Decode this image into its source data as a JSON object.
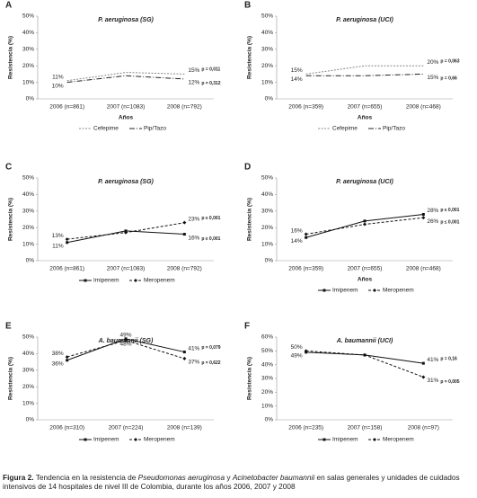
{
  "chart_data": [
    {
      "type": "line",
      "panel": "A",
      "title": "P. aeruginosa (SG)",
      "y_label": "Resistencia (%)",
      "x_label": "Años",
      "categories": [
        "2006 (n=861)",
        "2007 (n=1083)",
        "2008 (n=792)"
      ],
      "ylim": [
        0,
        50
      ],
      "yticks": [
        {
          "value": 0,
          "label": "0%"
        },
        {
          "value": 10,
          "label": "10%"
        },
        {
          "value": 20,
          "label": "20%"
        },
        {
          "value": 30,
          "label": "30%"
        },
        {
          "value": 40,
          "label": "40%"
        },
        {
          "value": 50,
          "label": "50%"
        }
      ],
      "series": [
        {
          "name": "Cefepime",
          "color": "#888888",
          "dash": "2,1.5",
          "marker": "none",
          "values": [
            11,
            16,
            15
          ],
          "value_labels": [
            "11%",
            null,
            "15%"
          ],
          "annotation": "p = 0,011"
        },
        {
          "name": "Pip/Tazo",
          "color": "#222222",
          "dash": "6,2,1,2",
          "marker": "none",
          "values": [
            10,
            14,
            12
          ],
          "value_labels": [
            "10%",
            null,
            "12%"
          ],
          "annotation": "p = 0,312"
        }
      ]
    },
    {
      "type": "line",
      "panel": "B",
      "title": "P. aeruginosa (UCI)",
      "y_label": "Resistencia (%)",
      "x_label": "Años",
      "categories": [
        "2006 (n=359)",
        "2007 (n=655)",
        "2008 (n=468)"
      ],
      "ylim": [
        0,
        50
      ],
      "yticks": [
        {
          "value": 0,
          "label": "0%"
        },
        {
          "value": 10,
          "label": "10%"
        },
        {
          "value": 20,
          "label": "20%"
        },
        {
          "value": 30,
          "label": "30%"
        },
        {
          "value": 40,
          "label": "40%"
        },
        {
          "value": 50,
          "label": "50%"
        }
      ],
      "series": [
        {
          "name": "Cefepime",
          "color": "#888888",
          "dash": "2,1.5",
          "marker": "none",
          "values": [
            15,
            20,
            20
          ],
          "value_labels": [
            "15%",
            null,
            "20%"
          ],
          "annotation": "p = 0,063"
        },
        {
          "name": "Pip/Tazo",
          "color": "#222222",
          "dash": "6,2,1,2",
          "marker": "none",
          "values": [
            14,
            14,
            15
          ],
          "value_labels": [
            "14%",
            null,
            "15%"
          ],
          "annotation": "p = 0,66"
        }
      ]
    },
    {
      "type": "line",
      "panel": "C",
      "title": "P. aeruginosa (SG)",
      "y_label": "Resistencia (%)",
      "categories": [
        "2006 (n=861)",
        "2007 (n=1083)",
        "2008 (n=792)"
      ],
      "ylim": [
        0,
        50
      ],
      "yticks": [
        {
          "value": 0,
          "label": "0%"
        },
        {
          "value": 10,
          "label": "10%"
        },
        {
          "value": 20,
          "label": "20%"
        },
        {
          "value": 30,
          "label": "30%"
        },
        {
          "value": 40,
          "label": "40%"
        },
        {
          "value": 50,
          "label": "50%"
        }
      ],
      "series": [
        {
          "name": "Imipenem",
          "color": "#111111",
          "dash": "none",
          "marker": "square",
          "values": [
            11,
            18,
            16
          ],
          "value_labels": [
            "11%",
            null,
            "16%"
          ],
          "annotation": "p ≤ 0,001"
        },
        {
          "name": "Meropenem",
          "color": "#111111",
          "dash": "3,2",
          "marker": "diamond",
          "values": [
            13,
            17,
            23
          ],
          "value_labels": [
            "13%",
            null,
            "23%"
          ],
          "annotation": "p ≤ 0,001"
        }
      ]
    },
    {
      "type": "line",
      "panel": "D",
      "title": "P. aeruginosa (UCI)",
      "y_label": "Resistencia (%)",
      "x_label": "Años",
      "categories": [
        "2006 (n=359)",
        "2007 (n=655)",
        "2008 (n=468)"
      ],
      "ylim": [
        0,
        50
      ],
      "yticks": [
        {
          "value": 0,
          "label": "0%"
        },
        {
          "value": 10,
          "label": "10%"
        },
        {
          "value": 20,
          "label": "20%"
        },
        {
          "value": 30,
          "label": "30%"
        },
        {
          "value": 40,
          "label": "40%"
        },
        {
          "value": 50,
          "label": "50%"
        }
      ],
      "series": [
        {
          "name": "Imipenem",
          "color": "#111111",
          "dash": "none",
          "marker": "square",
          "values": [
            14,
            24,
            28
          ],
          "value_labels": [
            "14%",
            null,
            "28%"
          ],
          "annotation": "p ≤ 0,001"
        },
        {
          "name": "Meropenem",
          "color": "#111111",
          "dash": "3,2",
          "marker": "diamond",
          "values": [
            16,
            22,
            26
          ],
          "value_labels": [
            "16%",
            null,
            "26%"
          ],
          "annotation": "p ≤ 0,001"
        }
      ]
    },
    {
      "type": "line",
      "panel": "E",
      "title": "A. baumannii (SG)",
      "y_label": "Resistencia (%)",
      "categories": [
        "2006 (n=310)",
        "2007 (n=224)",
        "2008 (n=139)"
      ],
      "ylim": [
        0,
        50
      ],
      "yticks": [
        {
          "value": 0,
          "label": "0%"
        },
        {
          "value": 10,
          "label": "10%"
        },
        {
          "value": 20,
          "label": "20%"
        },
        {
          "value": 30,
          "label": "30%"
        },
        {
          "value": 40,
          "label": "40%"
        },
        {
          "value": 50,
          "label": "50%"
        }
      ],
      "series": [
        {
          "name": "Imipenem",
          "color": "#111111",
          "dash": "none",
          "marker": "square",
          "values": [
            36,
            49,
            41
          ],
          "value_labels": [
            "36%",
            "49%",
            "41%"
          ],
          "annotation": "p = 0,079"
        },
        {
          "name": "Meropenem",
          "color": "#111111",
          "dash": "3,2",
          "marker": "diamond",
          "values": [
            38,
            48,
            37
          ],
          "value_labels": [
            "38%",
            "48%",
            "37%"
          ],
          "annotation": "p = 0,622"
        }
      ]
    },
    {
      "type": "line",
      "panel": "F",
      "title": "A. baumannii (UCI)",
      "y_label": "Resistencia (%)",
      "categories": [
        "2006 (n=235)",
        "2007 (n=158)",
        "2008 (n=97)"
      ],
      "ylim": [
        0,
        60
      ],
      "yticks": [
        {
          "value": 0,
          "label": "0%"
        },
        {
          "value": 10,
          "label": "10%"
        },
        {
          "value": 20,
          "label": "20%"
        },
        {
          "value": 30,
          "label": "30%"
        },
        {
          "value": 40,
          "label": "40%"
        },
        {
          "value": 50,
          "label": "50%"
        },
        {
          "value": 60,
          "label": "60%"
        }
      ],
      "series": [
        {
          "name": "Imipenem",
          "color": "#111111",
          "dash": "none",
          "marker": "square",
          "values": [
            49,
            47,
            41
          ],
          "value_labels": [
            "49%",
            null,
            "41%"
          ],
          "annotation": "p = 0,16"
        },
        {
          "name": "Meropenem",
          "color": "#111111",
          "dash": "3,2",
          "marker": "diamond",
          "values": [
            50,
            47,
            31
          ],
          "value_labels": [
            "50%",
            null,
            "31%"
          ],
          "annotation": "p = 0,005"
        }
      ]
    }
  ],
  "caption": {
    "label": "Figura 2.",
    "parts": [
      " Tendencia en la resistencia de ",
      "Pseudomonas aeruginosa",
      " y ",
      "Acinetobacter baumannii",
      " en salas generales y unidades de cuidados intensivos de 14 hospitales de nivel III de Colombia, durante los años 2006, 2007 y 2008"
    ],
    "italic_parts": [
      1,
      3
    ]
  }
}
